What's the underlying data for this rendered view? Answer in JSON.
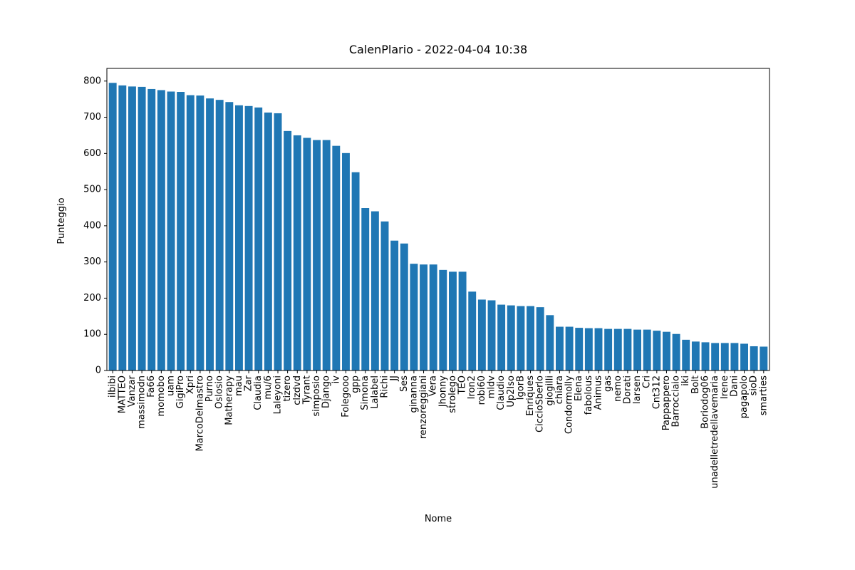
{
  "chart_data": {
    "type": "bar",
    "title": "CalenPlario - 2022-04-04 10:38",
    "xlabel": "Nome",
    "ylabel": "Punteggio",
    "ylim": [
      0,
      835
    ],
    "yticks": [
      0,
      100,
      200,
      300,
      400,
      500,
      600,
      700,
      800
    ],
    "grid": false,
    "bar_color": "#1f77b4",
    "categories": [
      "ilbibi",
      "MATTEO",
      "Vanzar",
      "massimodn",
      "Fa66",
      "momobo",
      "uam",
      "GigiPro",
      "Xpri",
      "MarcoDelmastro",
      "Purno",
      "Oslosio",
      "Matherapy",
      "mau",
      "Zar",
      "Claudia",
      "mu/6",
      "Laleyoni",
      "tizero",
      "clzdvd",
      "Tyrant",
      "simposio",
      "Django",
      "iv",
      "Folegooo",
      "gpp",
      "Simona",
      "Lalabel",
      "Richi",
      "JJ",
      "Ses",
      "ginanna",
      "renzoreggiani",
      "Vera",
      "Jhonny",
      "strolego",
      "TEO",
      "Iron2",
      "robi60",
      "mldv",
      "Claudio",
      "Up2Iso",
      "IgorB",
      "Enriques",
      "CiccioSberlo",
      "giogilli",
      "chiara",
      "Condormolly",
      "Elena",
      "fabolous",
      "Animus",
      "gas",
      "nemo",
      "Dorati",
      "larsen",
      "Cri",
      "Cnt312",
      "Pappappero",
      "Barrocciaio",
      "iki",
      "Bolt",
      "Boriodog06",
      "unadelletredellavemaria",
      "Irene",
      "Dani",
      "pagapolo",
      "sioD",
      "smarties"
    ],
    "values": [
      795,
      788,
      785,
      784,
      778,
      775,
      771,
      770,
      761,
      760,
      752,
      748,
      742,
      733,
      731,
      727,
      713,
      711,
      662,
      650,
      643,
      637,
      637,
      621,
      601,
      548,
      449,
      440,
      412,
      359,
      351,
      295,
      293,
      293,
      278,
      273,
      273,
      218,
      196,
      194,
      182,
      180,
      178,
      178,
      175,
      153,
      121,
      121,
      118,
      117,
      117,
      115,
      115,
      115,
      113,
      113,
      110,
      107,
      101,
      85,
      80,
      78,
      76,
      76,
      76,
      74,
      67,
      66
    ]
  }
}
